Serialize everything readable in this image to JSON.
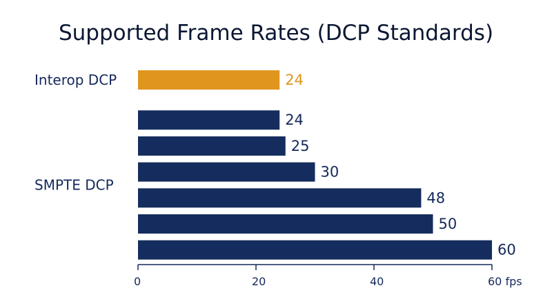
{
  "chart_data": {
    "type": "bar",
    "orientation": "horizontal",
    "title": "Supported Frame Rates (DCP Standards)",
    "xlabel": "",
    "ylabel": "",
    "xlim": [
      0,
      60
    ],
    "x_ticks": [
      {
        "value": 0,
        "label": "0"
      },
      {
        "value": 20,
        "label": "20"
      },
      {
        "value": 40,
        "label": "40"
      },
      {
        "value": 60,
        "label": "60 fps"
      }
    ],
    "grid": false,
    "groups": [
      {
        "name": "Interop DCP",
        "color": "#e0951e",
        "values": [
          24
        ]
      },
      {
        "name": "SMPTE DCP",
        "color": "#152d5e",
        "values": [
          24,
          25,
          30,
          48,
          50,
          60
        ]
      }
    ]
  }
}
